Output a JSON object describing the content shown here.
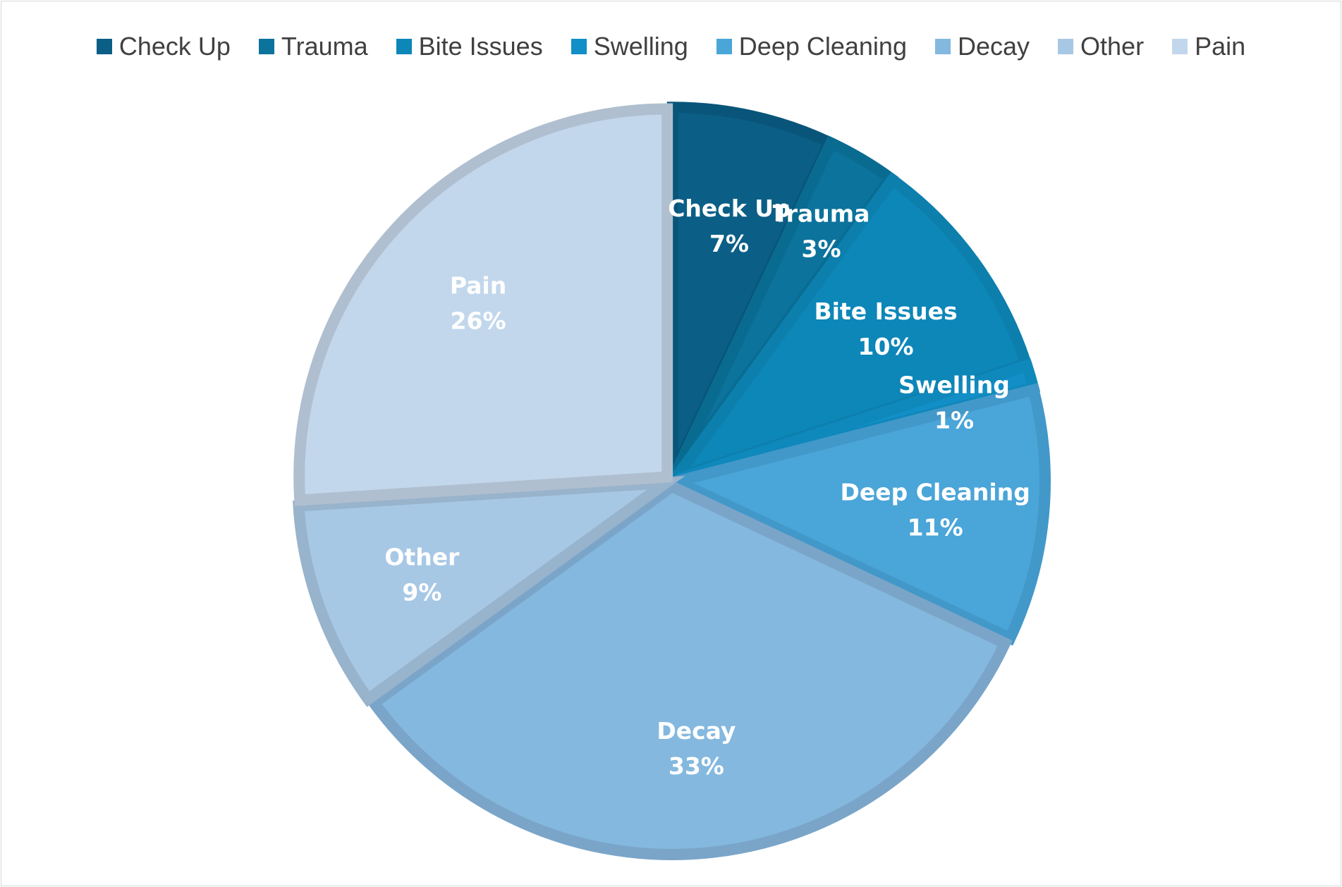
{
  "chart_data": {
    "type": "pie",
    "title": "",
    "legend_position": "top",
    "categories": [
      "Check Up",
      "Trauma",
      "Bite Issues",
      "Swelling",
      "Deep Cleaning",
      "Decay",
      "Other",
      "Pain"
    ],
    "values": [
      7,
      3,
      10,
      1,
      11,
      33,
      9,
      26
    ],
    "value_labels": [
      "7%",
      "3%",
      "10%",
      "1%",
      "11%",
      "33%",
      "9%",
      "26%"
    ],
    "colors": [
      "#0b5f86",
      "#0c739c",
      "#0d86b8",
      "#118fc6",
      "#4aa5d8",
      "#84b8df",
      "#a7c8e5",
      "#c2d7ec"
    ],
    "edge_colors": [
      "#09557a",
      "#0a6b91",
      "#0c7fad",
      "#0f88bc",
      "#4298c8",
      "#7aa5c9",
      "#98b3cc",
      "#afbfd0"
    ]
  }
}
